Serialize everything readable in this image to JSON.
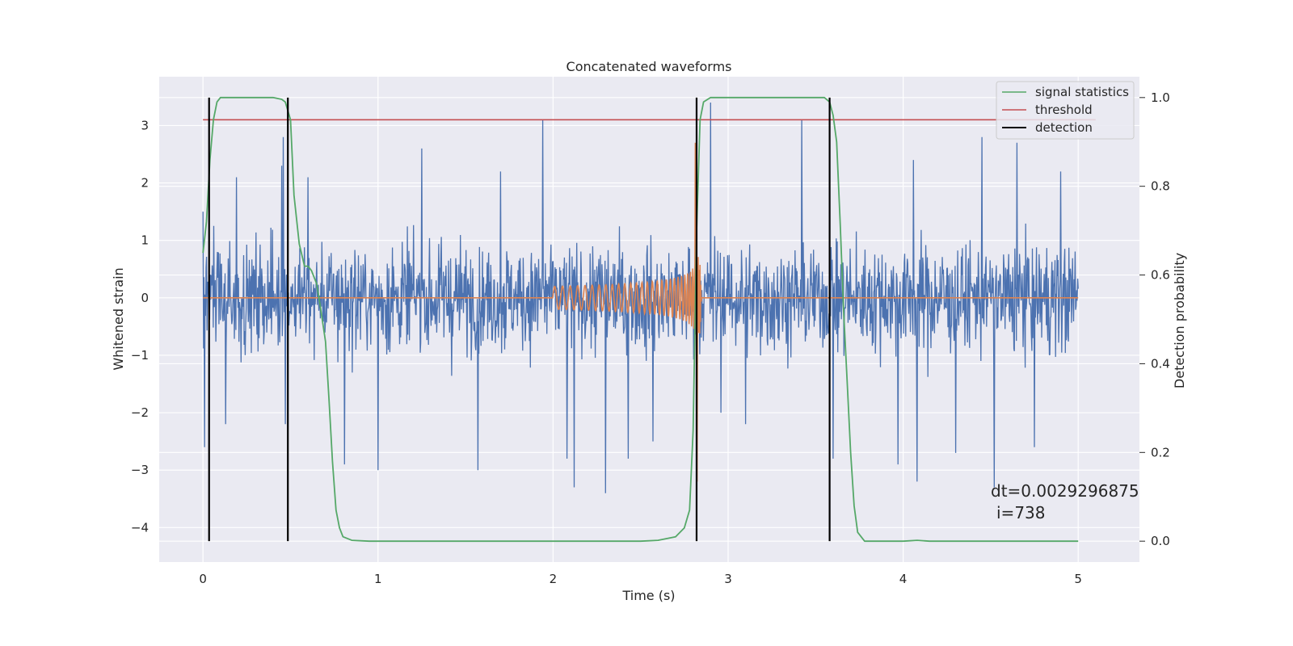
{
  "chart_data": {
    "type": "line",
    "title": "Concatenated waveforms",
    "xlabel": "Time (s)",
    "ylabel": "Whitened strain",
    "ylabel_right": "Detection probability",
    "xlim": [
      -0.25,
      5.35
    ],
    "ylim": [
      -4.6,
      3.85
    ],
    "ylim_right": [
      -0.047,
      1.047
    ],
    "xticks": [
      "0",
      "1",
      "2",
      "3",
      "4",
      "5"
    ],
    "yticks": [
      "−4",
      "−3",
      "−2",
      "−1",
      "0",
      "1",
      "2",
      "3"
    ],
    "yticks_right": [
      "0.0",
      "0.2",
      "0.4",
      "0.6",
      "0.8",
      "1.0"
    ],
    "grid": true,
    "legend_position": "top-right",
    "series": [
      {
        "name": "",
        "axis": "left",
        "kind": "noise",
        "color": "#4c72b0",
        "x_range": [
          0,
          5
        ],
        "typical_range": [
          -1.2,
          1.2
        ],
        "peaks": [
          {
            "x": 0.0,
            "y": 1.5
          },
          {
            "x": 0.01,
            "y": -2.6
          },
          {
            "x": 0.19,
            "y": 2.1
          },
          {
            "x": 0.13,
            "y": -2.2
          },
          {
            "x": 0.45,
            "y": 2.3
          },
          {
            "x": 0.47,
            "y": -2.2
          },
          {
            "x": 0.46,
            "y": 2.8
          },
          {
            "x": 0.6,
            "y": 2.1
          },
          {
            "x": 0.81,
            "y": -2.9
          },
          {
            "x": 1.0,
            "y": -3.0
          },
          {
            "x": 1.25,
            "y": 2.6
          },
          {
            "x": 1.57,
            "y": -3.0
          },
          {
            "x": 1.7,
            "y": 2.2
          },
          {
            "x": 1.94,
            "y": 3.1
          },
          {
            "x": 2.08,
            "y": -2.8
          },
          {
            "x": 2.12,
            "y": -3.3
          },
          {
            "x": 2.3,
            "y": -3.4
          },
          {
            "x": 2.43,
            "y": -2.8
          },
          {
            "x": 2.57,
            "y": -2.5
          },
          {
            "x": 2.9,
            "y": 3.4
          },
          {
            "x": 2.96,
            "y": -2.0
          },
          {
            "x": 3.1,
            "y": -2.2
          },
          {
            "x": 3.42,
            "y": 3.1
          },
          {
            "x": 3.6,
            "y": -2.8
          },
          {
            "x": 3.97,
            "y": -2.9
          },
          {
            "x": 4.06,
            "y": 2.4
          },
          {
            "x": 4.08,
            "y": -3.2
          },
          {
            "x": 4.3,
            "y": -2.7
          },
          {
            "x": 4.45,
            "y": 2.8
          },
          {
            "x": 4.52,
            "y": -3.3
          },
          {
            "x": 4.65,
            "y": 2.7
          },
          {
            "x": 4.75,
            "y": -2.6
          },
          {
            "x": 4.9,
            "y": 2.2
          }
        ]
      },
      {
        "name": "",
        "axis": "left",
        "kind": "chirp",
        "color": "#dd8452",
        "x_range": [
          0,
          5
        ],
        "chirp_start": 2.0,
        "merger_time": 2.83,
        "start_amplitude": 0.2,
        "peak": [
          2.7,
          -3.2
        ]
      },
      {
        "name": "signal statistics",
        "axis": "right",
        "color": "#55a868",
        "x": [
          0.0,
          0.02,
          0.04,
          0.06,
          0.08,
          0.1,
          0.15,
          0.3,
          0.4,
          0.45,
          0.47,
          0.5,
          0.52,
          0.55,
          0.58,
          0.6,
          0.62,
          0.65,
          0.67,
          0.7,
          0.72,
          0.74,
          0.76,
          0.78,
          0.8,
          0.85,
          0.95,
          1.5,
          2.5,
          2.6,
          2.7,
          2.75,
          2.78,
          2.8,
          2.82,
          2.84,
          2.86,
          2.9,
          3.0,
          3.4,
          3.55,
          3.58,
          3.6,
          3.62,
          3.64,
          3.66,
          3.68,
          3.7,
          3.72,
          3.74,
          3.78,
          3.9,
          4.0,
          4.08,
          4.15,
          4.5,
          5.0
        ],
        "y": [
          0.65,
          0.72,
          0.86,
          0.95,
          0.99,
          1.0,
          1.0,
          1.0,
          1.0,
          0.996,
          0.99,
          0.95,
          0.78,
          0.67,
          0.62,
          0.62,
          0.61,
          0.58,
          0.53,
          0.45,
          0.32,
          0.18,
          0.07,
          0.03,
          0.01,
          0.002,
          0.0,
          0.0,
          0.0,
          0.002,
          0.01,
          0.03,
          0.07,
          0.25,
          0.7,
          0.95,
          0.99,
          1.0,
          1.0,
          1.0,
          1.0,
          0.99,
          0.96,
          0.9,
          0.72,
          0.52,
          0.36,
          0.2,
          0.08,
          0.02,
          0.0,
          0.0,
          0.0,
          0.002,
          0.0,
          0.0,
          0.0
        ]
      },
      {
        "name": "threshold",
        "axis": "right",
        "color": "#c44e52",
        "x": [
          0.0,
          5.1
        ],
        "y": [
          0.95,
          0.95
        ]
      },
      {
        "name": "detection",
        "axis": "right",
        "color": "#000000",
        "vlines": [
          0.035,
          0.485,
          2.82,
          3.58
        ],
        "range": [
          0.0,
          1.0
        ]
      }
    ],
    "annotations": {
      "dt": "dt=0.0029296875",
      "i": "i=738",
      "x": 4.5,
      "y": 0.115
    }
  }
}
